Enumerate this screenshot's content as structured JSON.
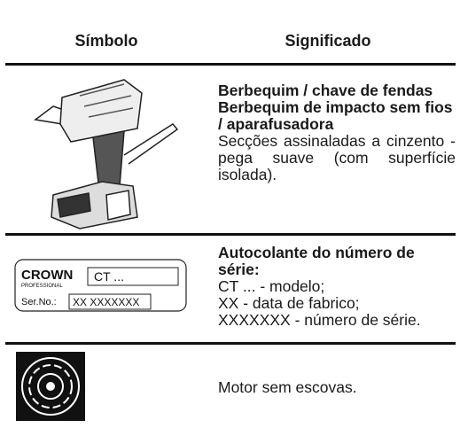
{
  "table": {
    "header": {
      "symbol": "Símbolo",
      "meaning": "Significado"
    },
    "rows": [
      {
        "bold": [
          "Berbequim / chave de fendas",
          "Berbequim de impacto sem fios / aparafusadora"
        ],
        "text": [
          "Secções assinaladas a cinzento - pega suave (com superfície isolada)."
        ]
      },
      {
        "label": {
          "brand": "CROWN",
          "sub": "PROFESSIONAL",
          "model": "CT ...",
          "serial_label": "Ser.No.:",
          "serial": "XX XXXXXXX"
        },
        "bold": [
          "Autocolante do número de série:"
        ],
        "text": [
          "CT ... - modelo;",
          "XX - data de fabrico;",
          "XXXXXXX - número de série."
        ]
      },
      {
        "text": [
          "Motor sem escovas."
        ]
      }
    ]
  }
}
